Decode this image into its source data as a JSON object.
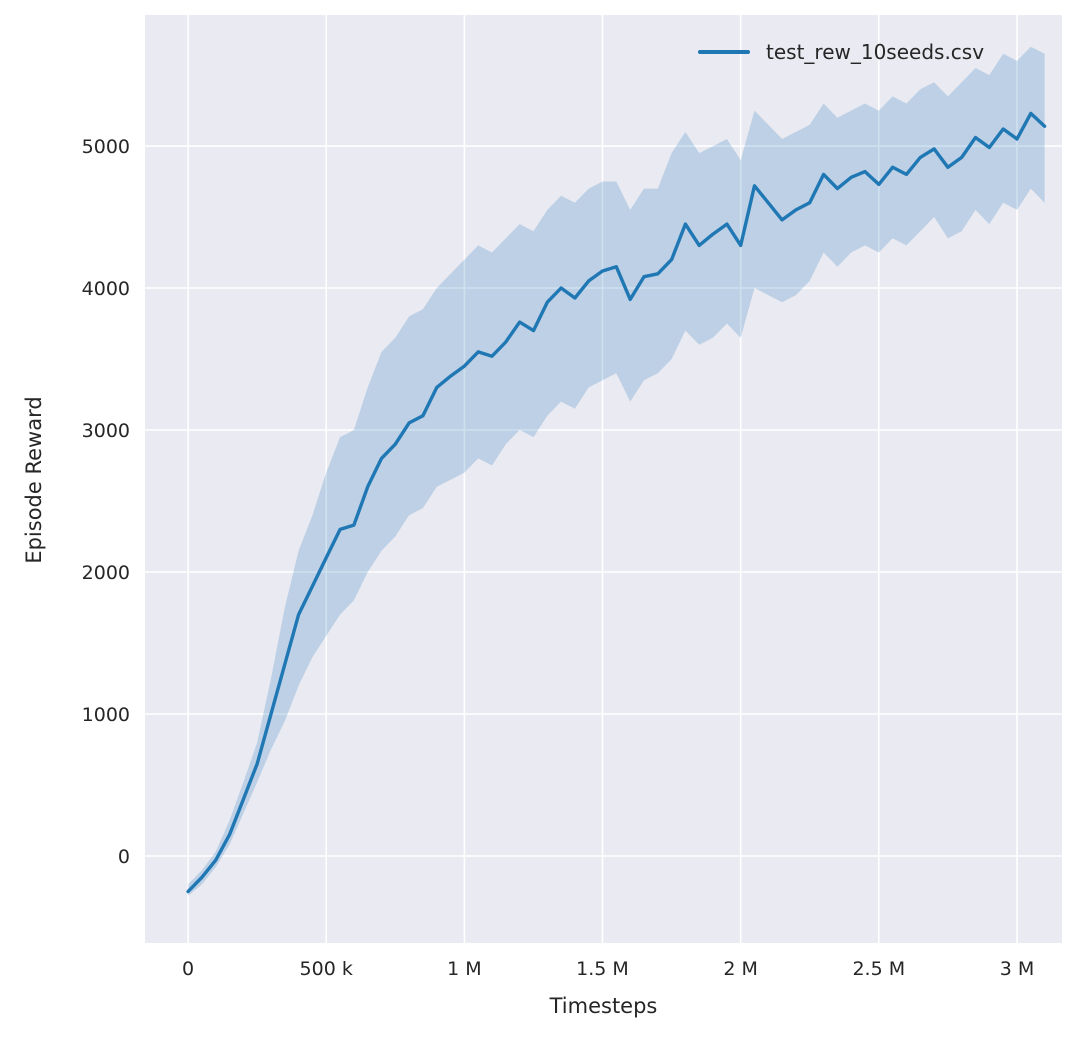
{
  "chart_data": {
    "type": "line",
    "title": "",
    "xlabel": "Timesteps",
    "ylabel": "Episode Reward",
    "grid": true,
    "legend_position": "upper right",
    "background": "#eaeaf2",
    "grid_color": "#ffffff",
    "tick_color": "#262626",
    "xlim": [
      -156000,
      3163000
    ],
    "ylim": [
      -613,
      5923
    ],
    "x_ticks": [
      {
        "value": 0,
        "label": "0"
      },
      {
        "value": 500000,
        "label": "500 k"
      },
      {
        "value": 1000000,
        "label": "1 M"
      },
      {
        "value": 1500000,
        "label": "1.5 M"
      },
      {
        "value": 2000000,
        "label": "2 M"
      },
      {
        "value": 2500000,
        "label": "2.5 M"
      },
      {
        "value": 3000000,
        "label": "3 M"
      }
    ],
    "y_ticks": [
      {
        "value": 0,
        "label": "0"
      },
      {
        "value": 1000,
        "label": "1000"
      },
      {
        "value": 2000,
        "label": "2000"
      },
      {
        "value": 3000,
        "label": "3000"
      },
      {
        "value": 4000,
        "label": "4000"
      },
      {
        "value": 5000,
        "label": "5000"
      }
    ],
    "legend": [
      {
        "label": "test_rew_10seeds.csv",
        "color": "#1f77b4"
      }
    ],
    "series": [
      {
        "name": "test_rew_10seeds.csv",
        "color": "#1f77b4",
        "band_opacity": 0.22,
        "x": [
          0,
          50000,
          100000,
          150000,
          200000,
          250000,
          300000,
          350000,
          400000,
          450000,
          500000,
          550000,
          600000,
          650000,
          700000,
          750000,
          800000,
          850000,
          900000,
          950000,
          1000000,
          1050000,
          1100000,
          1150000,
          1200000,
          1250000,
          1300000,
          1350000,
          1400000,
          1450000,
          1500000,
          1550000,
          1600000,
          1650000,
          1700000,
          1750000,
          1800000,
          1850000,
          1900000,
          1950000,
          2000000,
          2050000,
          2100000,
          2150000,
          2200000,
          2250000,
          2300000,
          2350000,
          2400000,
          2450000,
          2500000,
          2550000,
          2600000,
          2650000,
          2700000,
          2750000,
          2800000,
          2850000,
          2900000,
          2950000,
          3000000,
          3050000,
          3100000
        ],
        "mean": [
          -250,
          -150,
          -30,
          150,
          400,
          650,
          1000,
          1350,
          1700,
          1900,
          2100,
          2300,
          2330,
          2600,
          2800,
          2900,
          3050,
          3100,
          3300,
          3380,
          3450,
          3550,
          3520,
          3620,
          3760,
          3700,
          3900,
          4000,
          3930,
          4050,
          4120,
          4150,
          3920,
          4080,
          4100,
          4200,
          4450,
          4300,
          4380,
          4450,
          4300,
          4720,
          4600,
          4480,
          4550,
          4600,
          4800,
          4700,
          4780,
          4820,
          4730,
          4850,
          4800,
          4920,
          4980,
          4850,
          4920,
          5060,
          4990,
          5120,
          5050,
          5230,
          5140
        ],
        "lo": [
          -280,
          -200,
          -80,
          80,
          300,
          520,
          750,
          950,
          1200,
          1400,
          1550,
          1700,
          1800,
          2000,
          2150,
          2250,
          2400,
          2450,
          2600,
          2650,
          2700,
          2800,
          2750,
          2900,
          3000,
          2950,
          3100,
          3200,
          3150,
          3300,
          3350,
          3400,
          3200,
          3350,
          3400,
          3500,
          3700,
          3600,
          3650,
          3750,
          3650,
          4000,
          3950,
          3900,
          3950,
          4050,
          4250,
          4150,
          4250,
          4300,
          4250,
          4350,
          4300,
          4400,
          4500,
          4350,
          4400,
          4550,
          4450,
          4600,
          4550,
          4700,
          4600
        ],
        "hi": [
          -200,
          -100,
          30,
          250,
          520,
          800,
          1250,
          1750,
          2150,
          2400,
          2700,
          2950,
          3000,
          3300,
          3550,
          3650,
          3800,
          3850,
          4000,
          4100,
          4200,
          4300,
          4250,
          4350,
          4450,
          4400,
          4550,
          4650,
          4600,
          4700,
          4750,
          4750,
          4550,
          4700,
          4700,
          4950,
          5100,
          4950,
          5000,
          5050,
          4900,
          5250,
          5150,
          5050,
          5100,
          5150,
          5300,
          5200,
          5250,
          5300,
          5250,
          5350,
          5300,
          5400,
          5450,
          5350,
          5450,
          5550,
          5500,
          5650,
          5600,
          5700,
          5650
        ]
      }
    ]
  }
}
